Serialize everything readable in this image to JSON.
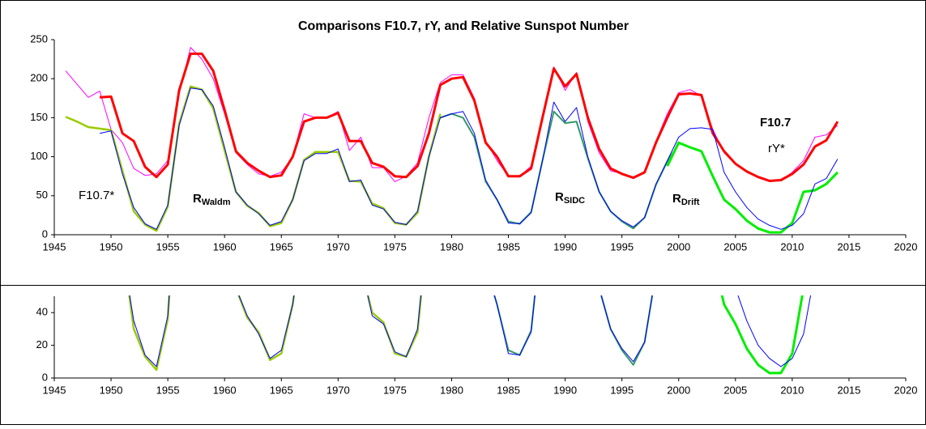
{
  "chart_data": {
    "type": "line",
    "title": "Comparisons F10.7, rY, and Relative Sunspot Number",
    "xlim": [
      1945,
      2020
    ],
    "xticks": [
      1945,
      1950,
      1955,
      1960,
      1965,
      1970,
      1975,
      1980,
      1985,
      1990,
      1995,
      2000,
      2005,
      2010,
      2015,
      2020
    ],
    "panels": [
      {
        "ylim": [
          0,
          250
        ],
        "yticks": [
          0,
          50,
          100,
          150,
          200,
          250
        ]
      },
      {
        "ylim": [
          0,
          50
        ],
        "yticks": [
          0,
          20,
          40
        ]
      }
    ],
    "x": [
      1946,
      1947,
      1948,
      1949,
      1950,
      1951,
      1952,
      1953,
      1954,
      1955,
      1956,
      1957,
      1958,
      1959,
      1960,
      1961,
      1962,
      1963,
      1964,
      1965,
      1966,
      1967,
      1968,
      1969,
      1970,
      1971,
      1972,
      1973,
      1974,
      1975,
      1976,
      1977,
      1978,
      1979,
      1980,
      1981,
      1982,
      1983,
      1984,
      1985,
      1986,
      1987,
      1988,
      1989,
      1990,
      1991,
      1992,
      1993,
      1994,
      1995,
      1996,
      1997,
      1998,
      1999,
      2000,
      2001,
      2002,
      2003,
      2004,
      2005,
      2006,
      2007,
      2008,
      2009,
      2010,
      2011,
      2012,
      2013,
      2014
    ],
    "series": [
      {
        "name": "rY*",
        "color": "#ff00ff",
        "values": [
          210,
          193,
          176,
          184,
          135,
          118,
          85,
          76,
          78,
          95,
          180,
          240,
          225,
          200,
          155,
          105,
          90,
          78,
          75,
          80,
          100,
          155,
          150,
          150,
          158,
          108,
          125,
          86,
          86,
          68,
          75,
          92,
          150,
          195,
          205,
          205,
          175,
          120,
          95,
          75,
          75,
          88,
          150,
          215,
          185,
          208,
          145,
          105,
          82,
          78,
          72,
          80,
          120,
          155,
          182,
          186,
          178,
          135,
          105,
          90,
          80,
          75,
          70,
          70,
          80,
          95,
          125,
          128,
          140
        ]
      },
      {
        "name": "F10.7",
        "color": "#ff0000",
        "values": [
          null,
          null,
          null,
          176,
          177,
          130,
          120,
          87,
          74,
          90,
          185,
          232,
          232,
          210,
          160,
          107,
          92,
          82,
          74,
          76,
          100,
          145,
          150,
          150,
          156,
          120,
          120,
          92,
          87,
          75,
          74,
          88,
          130,
          192,
          200,
          202,
          172,
          118,
          100,
          75,
          75,
          85,
          150,
          213,
          190,
          206,
          150,
          110,
          85,
          78,
          73,
          80,
          118,
          150,
          180,
          181,
          179,
          130,
          107,
          91,
          81,
          74,
          69,
          70,
          78,
          90,
          113,
          121,
          145
        ]
      },
      {
        "name": "R",
        "name_sub": "Waldm",
        "color": "#99cc00",
        "values": [
          151,
          145,
          138,
          136,
          134,
          82,
          30,
          13,
          5,
          36,
          142,
          190,
          186,
          162,
          108,
          55,
          37,
          28,
          11,
          15,
          45,
          96,
          106,
          106,
          106,
          69,
          68,
          40,
          34,
          15,
          13,
          28,
          100,
          155,
          null,
          null,
          null,
          null,
          null,
          null,
          null,
          null,
          null,
          null,
          null,
          null,
          null,
          null,
          null,
          null,
          null,
          null,
          null,
          null,
          null,
          null,
          null,
          null,
          null,
          null,
          null,
          null,
          null,
          null,
          null,
          null,
          null,
          null,
          null
        ]
      },
      {
        "name": "R",
        "name_sub": "SIDC",
        "color": "#339966",
        "values": [
          null,
          null,
          null,
          null,
          null,
          null,
          null,
          null,
          null,
          null,
          null,
          null,
          null,
          null,
          null,
          null,
          null,
          null,
          null,
          null,
          null,
          null,
          null,
          null,
          null,
          null,
          null,
          null,
          null,
          null,
          null,
          null,
          null,
          150,
          155,
          150,
          125,
          68,
          45,
          17,
          14,
          29,
          95,
          158,
          143,
          145,
          98,
          55,
          30,
          17,
          8,
          22,
          64,
          94,
          116,
          null,
          null,
          null,
          null,
          null,
          null,
          null,
          null,
          null,
          null,
          null,
          null,
          null,
          null
        ]
      },
      {
        "name": "R",
        "name_sub": "Drift",
        "color": "#00ee00",
        "values": [
          null,
          null,
          null,
          null,
          null,
          null,
          null,
          null,
          null,
          null,
          null,
          null,
          null,
          null,
          null,
          null,
          null,
          null,
          null,
          null,
          null,
          null,
          null,
          null,
          null,
          null,
          null,
          null,
          null,
          null,
          null,
          null,
          null,
          null,
          null,
          null,
          null,
          null,
          null,
          null,
          null,
          null,
          null,
          null,
          null,
          null,
          null,
          null,
          null,
          null,
          null,
          null,
          null,
          88,
          118,
          112,
          107,
          75,
          45,
          33,
          18,
          8,
          3,
          3,
          15,
          55,
          57,
          65,
          80
        ]
      },
      {
        "name": "F10.7*",
        "color": "#0000ff",
        "values": [
          null,
          null,
          null,
          130,
          133,
          78,
          35,
          14,
          7,
          38,
          140,
          188,
          186,
          165,
          112,
          55,
          38,
          27,
          12,
          17,
          45,
          95,
          104,
          104,
          110,
          68,
          70,
          38,
          33,
          16,
          13,
          30,
          100,
          150,
          155,
          158,
          130,
          70,
          45,
          15,
          14,
          28,
          95,
          170,
          145,
          163,
          100,
          55,
          30,
          18,
          10,
          22,
          65,
          95,
          125,
          136,
          137,
          135,
          80,
          55,
          35,
          20,
          12,
          7,
          12,
          27,
          65,
          72,
          97
        ]
      }
    ]
  }
}
